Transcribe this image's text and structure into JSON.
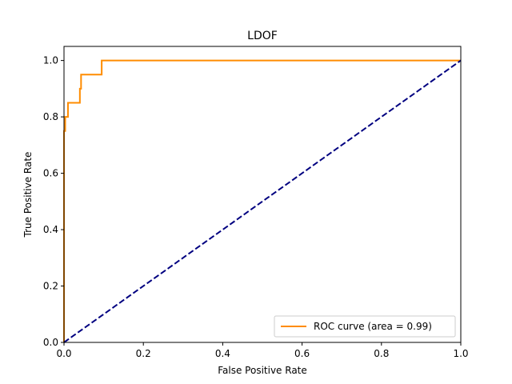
{
  "chart_data": {
    "type": "line",
    "title": "LDOF",
    "xlabel": "False Positive Rate",
    "ylabel": "True Positive Rate",
    "xlim": [
      0,
      1
    ],
    "ylim": [
      0,
      1.05
    ],
    "xticks": [
      0.0,
      0.2,
      0.4,
      0.6,
      0.8,
      1.0
    ],
    "yticks": [
      0.0,
      0.2,
      0.4,
      0.6,
      0.8,
      1.0
    ],
    "xtick_labels": [
      "0.0",
      "0.2",
      "0.4",
      "0.6",
      "0.8",
      "1.0"
    ],
    "ytick_labels": [
      "0.0",
      "0.2",
      "0.4",
      "0.6",
      "0.8",
      "1.0"
    ],
    "grid": false,
    "legend_position": "lower-right",
    "legend": [
      "ROC curve (area = 0.99)"
    ],
    "series": [
      {
        "name": "ROC curve (area = 0.99)",
        "color": "#ff8c00",
        "style": "solid",
        "x": [
          0.0,
          0.0,
          0.003,
          0.003,
          0.01,
          0.01,
          0.04,
          0.04,
          0.043,
          0.043,
          0.095,
          0.095,
          1.0
        ],
        "y": [
          0.0,
          0.75,
          0.75,
          0.8,
          0.8,
          0.85,
          0.85,
          0.9,
          0.9,
          0.95,
          0.95,
          1.0,
          1.0
        ]
      },
      {
        "color": "#000080",
        "style": "dashed",
        "x": [
          0.0,
          1.0
        ],
        "y": [
          0.0,
          1.0
        ]
      }
    ]
  }
}
